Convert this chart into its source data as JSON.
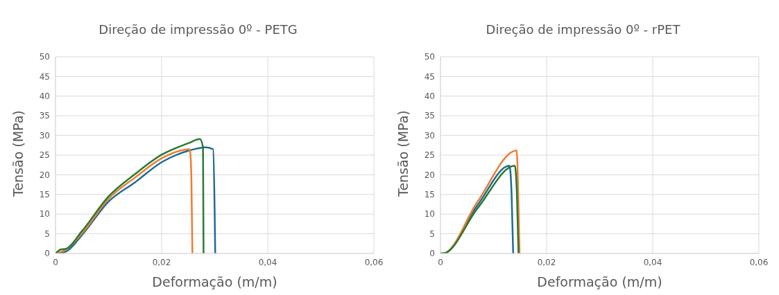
{
  "chart_data": [
    {
      "type": "line",
      "title": "Direção de impressão 0º - PETG",
      "xlabel": "Deformação (m/m)",
      "ylabel": "Tensão (MPa)",
      "xlim": [
        0,
        0.06
      ],
      "xticks": [
        0,
        {
          "value": 0.02,
          "label": "0,02"
        },
        {
          "value": 0.04,
          "label": "0,04"
        },
        {
          "value": 0.06,
          "label": "0,06"
        }
      ],
      "ylim": [
        0,
        50
      ],
      "yticks": [
        0,
        5,
        10,
        15,
        20,
        25,
        30,
        35,
        40,
        45,
        50
      ],
      "grid": true,
      "marker": "none",
      "line_style": "solid",
      "series": [
        {
          "color": "#1f6b94",
          "x": [
            0,
            0.002,
            0.005,
            0.01,
            0.015,
            0.02,
            0.025,
            0.0283,
            0.0297,
            0.03,
            0.0301
          ],
          "values": [
            0,
            0.5,
            4.7,
            13.2,
            18.1,
            23.2,
            26.1,
            27,
            26.5,
            10,
            0
          ]
        },
        {
          "color": "#ed7d31",
          "x": [
            0,
            0.002,
            0.005,
            0.01,
            0.015,
            0.02,
            0.0253,
            0.0256,
            0.0258
          ],
          "values": [
            0,
            1,
            5.1,
            13.9,
            19.3,
            24.2,
            26.5,
            20,
            0
          ]
        },
        {
          "color": "#2a7a35",
          "x": [
            0,
            0.001,
            0.002,
            0.005,
            0.01,
            0.015,
            0.02,
            0.025,
            0.0272,
            0.0278,
            0.0279
          ],
          "values": [
            0,
            1,
            1.2,
            5.7,
            14.5,
            20.2,
            25.1,
            28,
            29.1,
            27,
            0
          ]
        }
      ]
    },
    {
      "type": "line",
      "title": "Direção de impressão 0º - rPET",
      "xlabel": "Deformação (m/m)",
      "ylabel": "Tensão (MPa)",
      "xlim": [
        0,
        0.06
      ],
      "xticks": [
        0,
        {
          "value": 0.02,
          "label": "0,02"
        },
        {
          "value": 0.04,
          "label": "0,04"
        },
        {
          "value": 0.06,
          "label": "0,06"
        }
      ],
      "ylim": [
        0,
        50
      ],
      "yticks": [
        0,
        5,
        10,
        15,
        20,
        25,
        30,
        35,
        40,
        45,
        50
      ],
      "grid": true,
      "marker": "none",
      "line_style": "solid",
      "series": [
        {
          "color": "#1f6b94",
          "x": [
            0,
            0.0005,
            0.007,
            0.013,
            0.0134,
            0.0137
          ],
          "values": [
            0,
            0,
            12.3,
            22.3,
            15,
            0
          ]
        },
        {
          "color": "#ed7d31",
          "x": [
            0,
            0.0005,
            0.007,
            0.01435,
            0.0147,
            0.0149
          ],
          "values": [
            0,
            0,
            13.2,
            26.2,
            12,
            0
          ]
        },
        {
          "color": "#2a7a35",
          "x": [
            0,
            0.0005,
            0.007,
            0.014,
            0.0144,
            0.0147
          ],
          "values": [
            0,
            0,
            11.5,
            22.3,
            15,
            0
          ]
        }
      ]
    }
  ]
}
